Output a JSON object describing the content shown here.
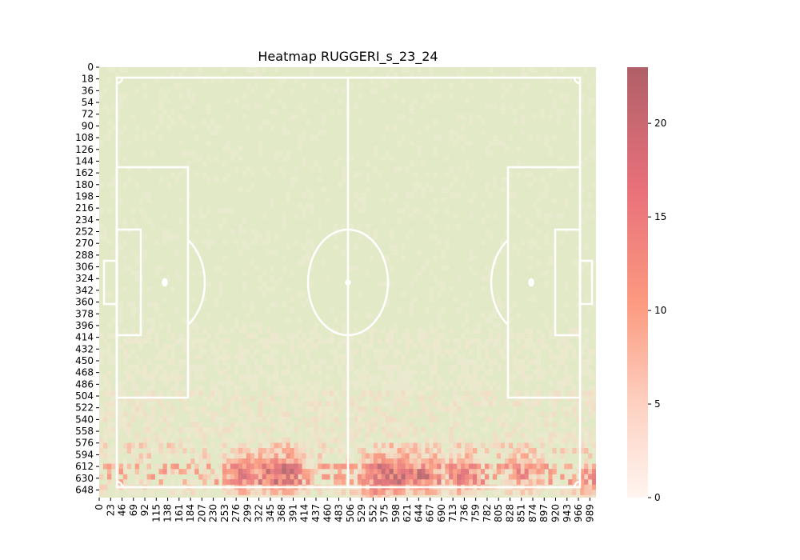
{
  "chart_data": {
    "type": "heatmap",
    "title": "Heatmap RUGGERI_s_23_24",
    "xlabel": "",
    "ylabel": "",
    "x_ticks": [
      "0",
      "23",
      "46",
      "69",
      "92",
      "115",
      "138",
      "161",
      "184",
      "207",
      "230",
      "253",
      "276",
      "299",
      "322",
      "345",
      "368",
      "391",
      "414",
      "437",
      "460",
      "483",
      "506",
      "529",
      "552",
      "575",
      "598",
      "621",
      "644",
      "667",
      "690",
      "713",
      "736",
      "759",
      "782",
      "805",
      "828",
      "851",
      "874",
      "897",
      "920",
      "943",
      "966",
      "989"
    ],
    "y_ticks": [
      "0",
      "18",
      "36",
      "54",
      "72",
      "90",
      "108",
      "126",
      "144",
      "162",
      "180",
      "198",
      "216",
      "234",
      "252",
      "270",
      "288",
      "306",
      "324",
      "342",
      "360",
      "378",
      "396",
      "414",
      "432",
      "450",
      "468",
      "486",
      "504",
      "522",
      "540",
      "558",
      "576",
      "594",
      "612",
      "630",
      "648"
    ],
    "colorbar": {
      "range": [
        0,
        23
      ],
      "ticks": [
        "0",
        "5",
        "10",
        "15",
        "20"
      ],
      "colors": [
        "#fff5f0",
        "#fdd0c0",
        "#fc9a80",
        "#e8707a",
        "#b06068"
      ]
    },
    "pitch": {
      "grass_color": "#e2e9c6",
      "line_color": "#ffffff"
    },
    "density_bands": [
      {
        "y_from": 0,
        "y_to": 400,
        "level": 0.5
      },
      {
        "y_from": 400,
        "y_to": 500,
        "level": 1.5
      },
      {
        "y_from": 500,
        "y_to": 580,
        "level": 3
      },
      {
        "y_from": 580,
        "y_to": 612,
        "level": 5
      },
      {
        "y_from": 612,
        "y_to": 640,
        "level": 8
      },
      {
        "y_from": 640,
        "y_to": 660,
        "level": 4
      }
    ],
    "hotspots": [
      {
        "x": 290,
        "y": 625,
        "value": 9
      },
      {
        "x": 350,
        "y": 625,
        "value": 10
      },
      {
        "x": 390,
        "y": 622,
        "value": 8
      },
      {
        "x": 575,
        "y": 622,
        "value": 10
      },
      {
        "x": 610,
        "y": 626,
        "value": 9
      },
      {
        "x": 660,
        "y": 626,
        "value": 9
      },
      {
        "x": 740,
        "y": 628,
        "value": 8
      },
      {
        "x": 850,
        "y": 625,
        "value": 6
      },
      {
        "x": 550,
        "y": 655,
        "value": 7
      },
      {
        "x": 990,
        "y": 650,
        "value": 6
      }
    ]
  }
}
